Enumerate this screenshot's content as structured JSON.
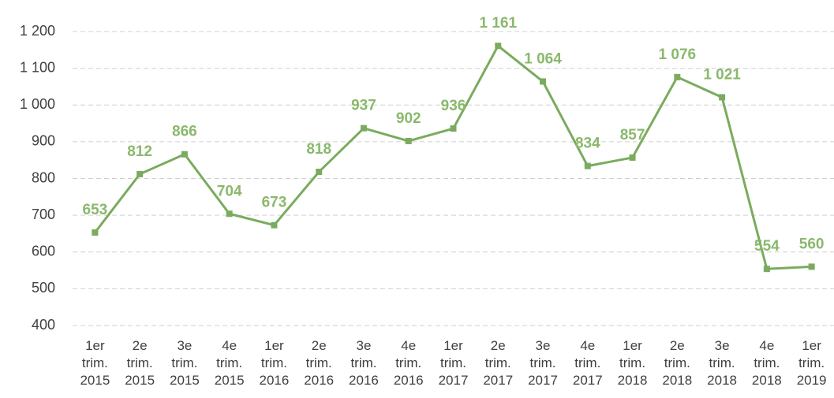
{
  "chart_data": {
    "type": "line",
    "categories": [
      "1er trim. 2015",
      "2e trim. 2015",
      "3e trim. 2015",
      "4e trim. 2015",
      "1er trim. 2016",
      "2e trim. 2016",
      "3e trim. 2016",
      "4e trim. 2016",
      "1er trim. 2017",
      "2e trim. 2017",
      "3e trim. 2017",
      "4e trim. 2017",
      "1er trim. 2018",
      "2e trim. 2018",
      "3e trim. 2018",
      "4e trim. 2018",
      "1er trim. 2019"
    ],
    "series": [
      {
        "color": "#7aab5e",
        "values": [
          653,
          812,
          866,
          704,
          673,
          818,
          937,
          902,
          936,
          1161,
          1064,
          834,
          857,
          1076,
          1021,
          554,
          560
        ],
        "value_labels": [
          "653",
          "812",
          "866",
          "704",
          "673",
          "818",
          "937",
          "902",
          "936",
          "1 161",
          "1 064",
          "834",
          "857",
          "1 076",
          "1 021",
          "554",
          "560"
        ]
      }
    ],
    "ylim": [
      400,
      1200
    ],
    "yticks": [
      400,
      500,
      600,
      700,
      800,
      900,
      {
        "value": 1000,
        "label": "1 000"
      },
      {
        "value": 1100,
        "label": "1 100"
      },
      {
        "value": 1200,
        "label": "1 200"
      }
    ],
    "grid": true
  }
}
